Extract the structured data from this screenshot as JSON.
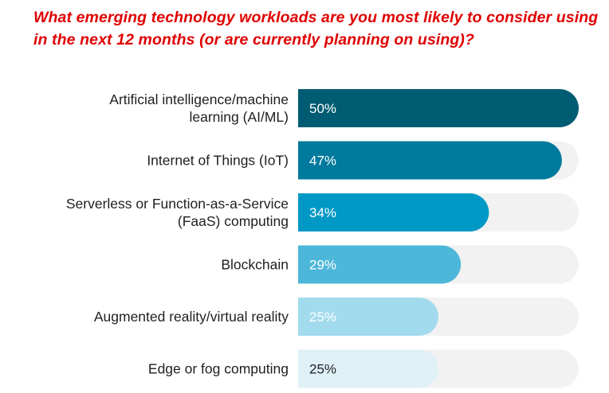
{
  "chart_data": {
    "type": "bar",
    "orientation": "horizontal",
    "title": "What emerging technology workloads are you most likely to consider using in the next 12 months (or are currently planning on using)?",
    "categories": [
      [
        "Artificial intelligence/machine",
        "learning (AI/ML)"
      ],
      [
        "Internet of Things (IoT)"
      ],
      [
        "Serverless or Function-as-a-Service",
        "(FaaS) computing"
      ],
      [
        "Blockchain"
      ],
      [
        "Augmented reality/virtual reality"
      ],
      [
        "Edge or fog computing"
      ]
    ],
    "values": [
      50,
      47,
      34,
      29,
      25,
      25
    ],
    "value_labels": [
      "50%",
      "47%",
      "34%",
      "29%",
      "25%",
      "25%"
    ],
    "xlim": [
      0,
      50
    ],
    "unit": "%",
    "bar_colors": [
      "#005c72",
      "#007a9c",
      "#0099c6",
      "#4cb7d9",
      "#a2dbed",
      "#dff0f7"
    ],
    "label_colors": [
      "#ffffff",
      "#ffffff",
      "#ffffff",
      "#ffffff",
      "#ffffff",
      "#1f1f1f"
    ],
    "track_color": "#f2f2f2",
    "title_color": "#e00000"
  }
}
